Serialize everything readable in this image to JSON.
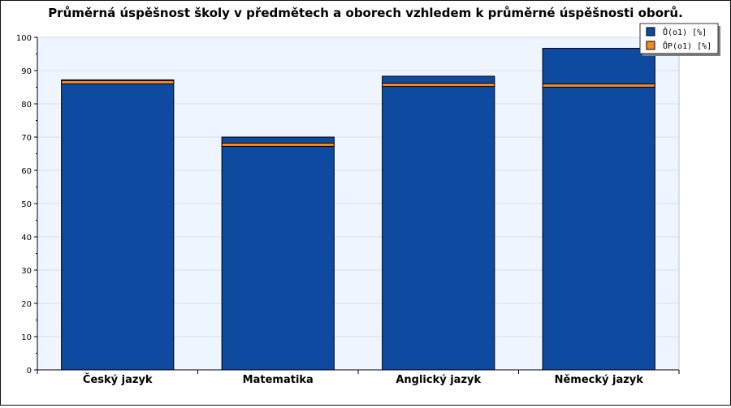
{
  "chart_data": {
    "type": "bar",
    "title": "Průměrná úspěšnost školy v předmětech a oborech vzhledem k průměrné úspěšnosti oborů.",
    "xlabel": "",
    "ylabel": "",
    "categories": [
      "Český jazyk",
      "Matematika",
      "Anglický jazyk",
      "Německý jazyk"
    ],
    "series": [
      {
        "name": "Ů(o1) [%]",
        "kind": "bar",
        "color": "#0d4aa0",
        "values": [
          87.2,
          70.0,
          88.3,
          96.7
        ]
      },
      {
        "name": "ŮP(o1) [%]",
        "kind": "marker",
        "color": "#f28b26",
        "values": [
          86.5,
          67.7,
          85.7,
          85.5
        ]
      }
    ],
    "ylim": [
      0,
      100
    ],
    "yticks": [
      0,
      10,
      20,
      30,
      40,
      50,
      60,
      70,
      80,
      90,
      100
    ],
    "grid": true,
    "legend_position": "top-right",
    "plot_background": "#eef5ff"
  }
}
